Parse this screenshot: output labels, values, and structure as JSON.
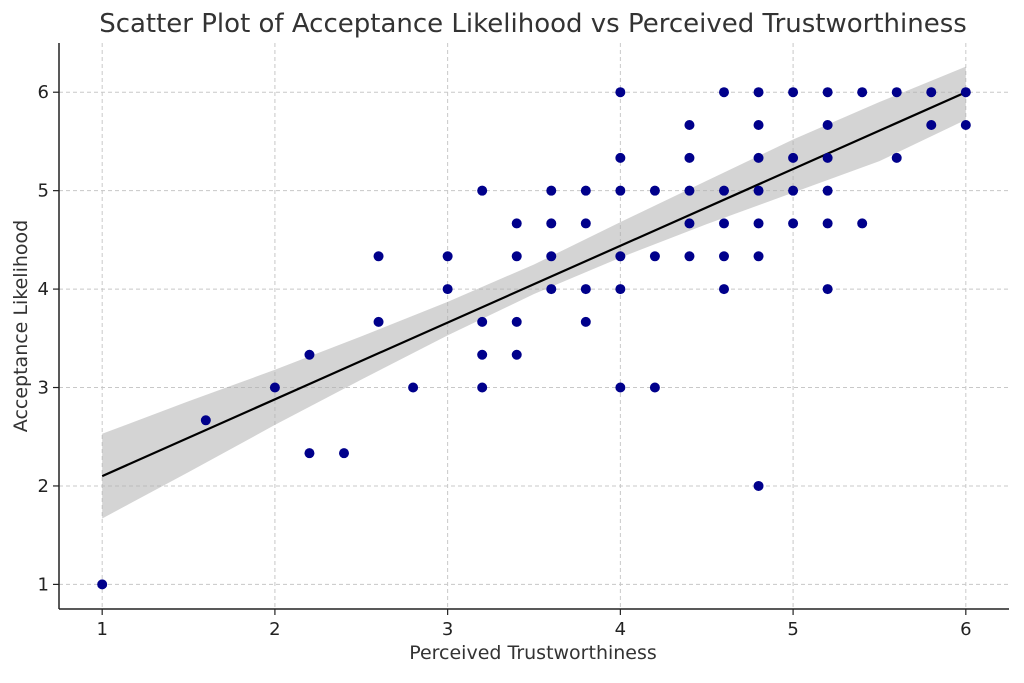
{
  "chart_data": {
    "type": "scatter",
    "title": "Scatter Plot of Acceptance Likelihood vs Perceived Trustworthiness",
    "xlabel": "Perceived Trustworthiness",
    "ylabel": "Acceptance Likelihood",
    "xlim": [
      0.75,
      6.25
    ],
    "ylim": [
      0.75,
      6.5
    ],
    "xticks": [
      1,
      2,
      3,
      4,
      5,
      6
    ],
    "yticks": [
      1,
      2,
      3,
      4,
      5,
      6
    ],
    "xtick_labels": [
      "1",
      "2",
      "3",
      "4",
      "5",
      "6"
    ],
    "ytick_labels": [
      "1",
      "2",
      "3",
      "4",
      "5",
      "6"
    ],
    "grid": true,
    "point_color": "#00008b",
    "points": [
      [
        1.0,
        1.0
      ],
      [
        1.6,
        2.667
      ],
      [
        2.0,
        3.0
      ],
      [
        2.2,
        3.333
      ],
      [
        2.2,
        2.333
      ],
      [
        2.4,
        2.333
      ],
      [
        2.6,
        4.333
      ],
      [
        2.6,
        3.667
      ],
      [
        2.8,
        3.0
      ],
      [
        3.0,
        4.333
      ],
      [
        3.0,
        4.0
      ],
      [
        3.2,
        5.0
      ],
      [
        3.2,
        3.667
      ],
      [
        3.2,
        3.333
      ],
      [
        3.2,
        3.0
      ],
      [
        3.4,
        4.667
      ],
      [
        3.4,
        4.333
      ],
      [
        3.4,
        3.667
      ],
      [
        3.4,
        3.333
      ],
      [
        3.6,
        5.0
      ],
      [
        3.6,
        4.667
      ],
      [
        3.6,
        4.333
      ],
      [
        3.6,
        4.0
      ],
      [
        3.8,
        5.0
      ],
      [
        3.8,
        4.667
      ],
      [
        3.8,
        4.0
      ],
      [
        3.8,
        3.667
      ],
      [
        4.0,
        6.0
      ],
      [
        4.0,
        5.333
      ],
      [
        4.0,
        5.0
      ],
      [
        4.0,
        4.333
      ],
      [
        4.0,
        4.0
      ],
      [
        4.0,
        3.0
      ],
      [
        4.2,
        5.0
      ],
      [
        4.2,
        4.333
      ],
      [
        4.2,
        3.0
      ],
      [
        4.4,
        5.667
      ],
      [
        4.4,
        5.333
      ],
      [
        4.4,
        5.0
      ],
      [
        4.4,
        4.667
      ],
      [
        4.4,
        4.333
      ],
      [
        4.6,
        6.0
      ],
      [
        4.6,
        5.0
      ],
      [
        4.6,
        4.667
      ],
      [
        4.6,
        4.333
      ],
      [
        4.6,
        4.0
      ],
      [
        4.8,
        6.0
      ],
      [
        4.8,
        5.667
      ],
      [
        4.8,
        5.333
      ],
      [
        4.8,
        5.0
      ],
      [
        4.8,
        4.667
      ],
      [
        4.8,
        4.333
      ],
      [
        4.8,
        2.0
      ],
      [
        5.0,
        6.0
      ],
      [
        5.0,
        5.333
      ],
      [
        5.0,
        5.0
      ],
      [
        5.0,
        4.667
      ],
      [
        5.2,
        6.0
      ],
      [
        5.2,
        5.667
      ],
      [
        5.2,
        5.333
      ],
      [
        5.2,
        5.0
      ],
      [
        5.2,
        4.667
      ],
      [
        5.2,
        4.0
      ],
      [
        5.4,
        6.0
      ],
      [
        5.4,
        4.667
      ],
      [
        5.6,
        6.0
      ],
      [
        5.6,
        5.333
      ],
      [
        5.8,
        6.0
      ],
      [
        5.8,
        5.667
      ],
      [
        6.0,
        6.0
      ],
      [
        6.0,
        5.667
      ]
    ],
    "regression_line": {
      "color": "#000000",
      "x": [
        1,
        6
      ],
      "y": [
        2.1,
        6.0
      ]
    },
    "confidence_band": {
      "color": "#b0b0b0",
      "x": [
        1.0,
        1.5,
        2.0,
        2.5,
        3.0,
        3.5,
        4.0,
        4.5,
        5.0,
        5.5,
        6.0
      ],
      "lower": [
        1.67,
        2.14,
        2.62,
        3.08,
        3.53,
        3.95,
        4.32,
        4.66,
        4.98,
        5.3,
        5.72
      ],
      "upper": [
        2.53,
        2.86,
        3.18,
        3.52,
        3.87,
        4.25,
        4.68,
        5.1,
        5.52,
        5.9,
        6.26
      ]
    }
  }
}
